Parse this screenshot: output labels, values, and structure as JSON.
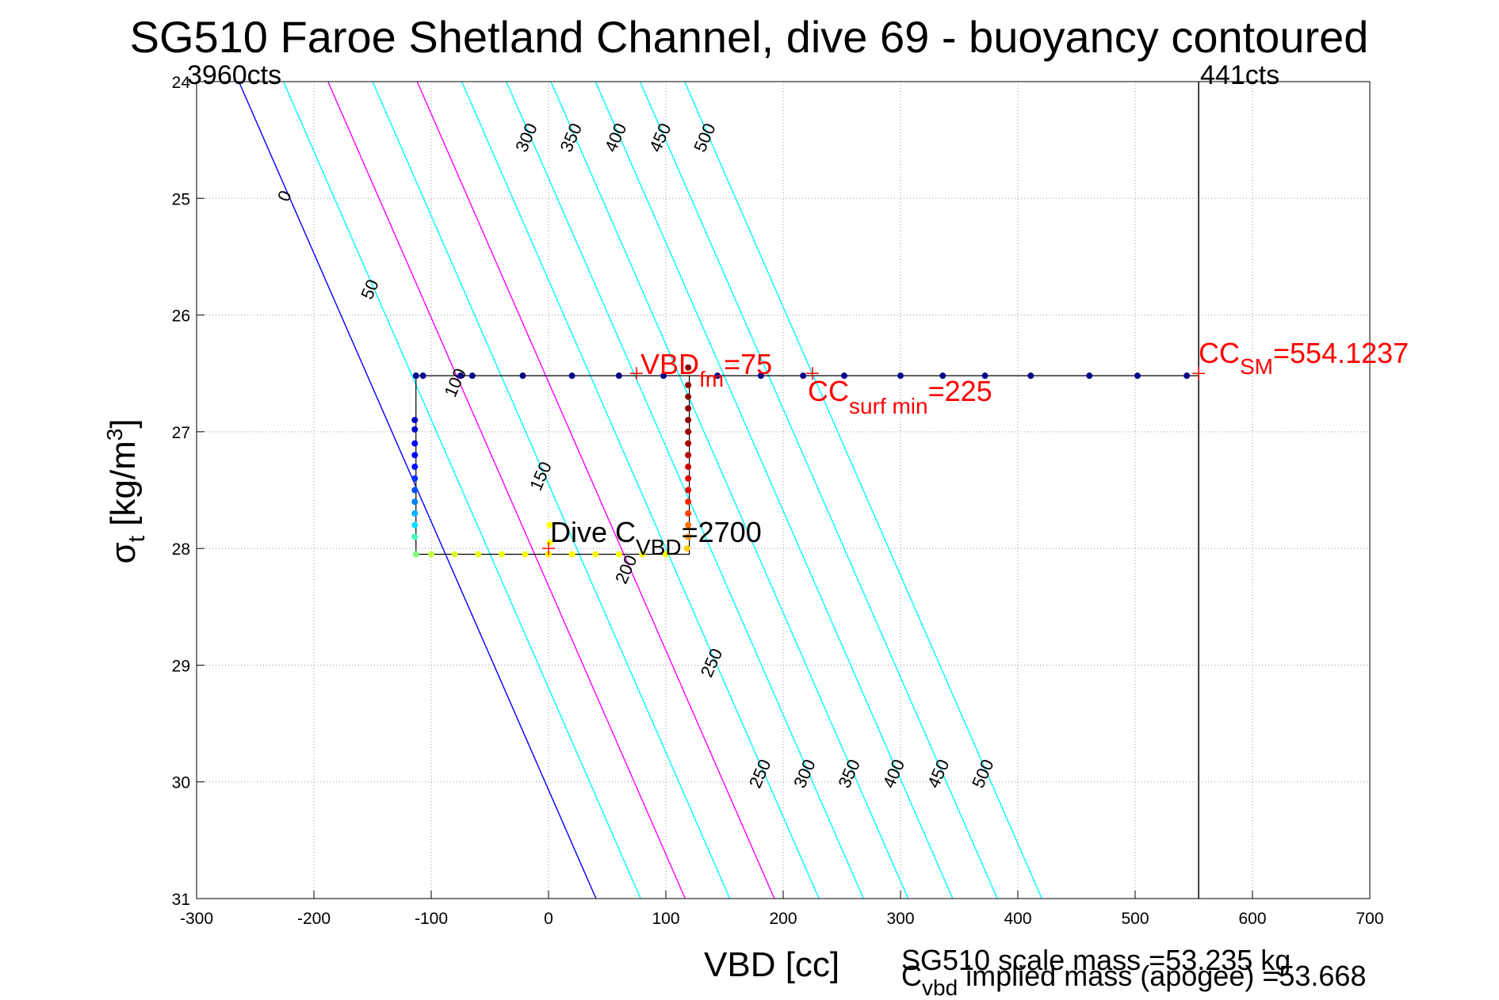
{
  "chart_data": {
    "type": "scatter",
    "title": "SG510 Faroe Shetland Channel, dive 69 - buoyancy contoured",
    "xlabel": "VBD [cc]",
    "ylabel_main": "σ",
    "ylabel_sub": "t",
    "ylabel_unit": " [kg/m",
    "ylabel_sup": "3",
    "ylabel_close": "]",
    "xlim": [
      -300,
      700
    ],
    "ylim": [
      24,
      31
    ],
    "y_reversed": true,
    "grid": true,
    "x_ticks": [
      -300,
      -200,
      -100,
      0,
      100,
      200,
      300,
      400,
      500,
      600,
      700
    ],
    "y_ticks": [
      24,
      25,
      26,
      27,
      28,
      29,
      30,
      31
    ],
    "top_left_label": "3960cts",
    "top_right_label": "441cts",
    "cc_sm": {
      "x": 554.1237,
      "sigma": 26.5,
      "label": "CC",
      "sub": "SM",
      "value": "=554.1237"
    },
    "vbd_fm": {
      "x": 75,
      "sigma": 26.5,
      "label": "VBD",
      "sub": "fm",
      "value": "=75"
    },
    "cc_surf_min": {
      "x": 225,
      "sigma": 26.5,
      "label": "CC",
      "sub": "surf min",
      "value": "=225"
    },
    "dive_cvbd": {
      "x": 0,
      "sigma": 28.0,
      "label": "Dive C",
      "sub": "VBD",
      "value": "=2700"
    },
    "bottom_note_1": "SG510 scale mass =53.235 kg",
    "bottom_note_2_main": "C",
    "bottom_note_2_sub": "vbd",
    "bottom_note_2_rest": " implied mass (apogee) =53.668",
    "contours": [
      {
        "label": "0",
        "color": "#0000ff",
        "offset": -264
      },
      {
        "label": "50",
        "color": "#00ffff",
        "offset": -226
      },
      {
        "label": "100",
        "color": "#ff00ff",
        "offset": -188
      },
      {
        "label": "150",
        "color": "#00ffff",
        "offset": -150
      },
      {
        "label": "200",
        "color": "#ff00ff",
        "offset": -112
      },
      {
        "label": "250",
        "color": "#00ffff",
        "offset": -74
      },
      {
        "label": "300",
        "color": "#00ffff",
        "offset": -36
      },
      {
        "label": "350",
        "color": "#00ffff",
        "offset": 2
      },
      {
        "label": "400",
        "color": "#00ffff",
        "offset": 40
      },
      {
        "label": "450",
        "color": "#00ffff",
        "offset": 78
      },
      {
        "label": "500",
        "color": "#00ffff",
        "offset": 116
      }
    ],
    "contour_slope_cc_per_sigma": 43.5,
    "line_path": [
      {
        "x": 554.1,
        "y": 26.52
      },
      {
        "x": -113,
        "y": 26.52
      },
      {
        "x": -113,
        "y": 28.05
      },
      {
        "x": 120,
        "y": 28.05
      },
      {
        "x": 120,
        "y": 26.52
      }
    ],
    "series": [
      {
        "name": "",
        "points": [
          {
            "x": 544,
            "y": 26.52,
            "c": "#00008b"
          },
          {
            "x": 502,
            "y": 26.52,
            "c": "#00008b"
          },
          {
            "x": 461,
            "y": 26.52,
            "c": "#00008b"
          },
          {
            "x": 411,
            "y": 26.52,
            "c": "#00008b"
          },
          {
            "x": 372,
            "y": 26.52,
            "c": "#00008b"
          },
          {
            "x": 336,
            "y": 26.52,
            "c": "#00008b"
          },
          {
            "x": 300,
            "y": 26.52,
            "c": "#00008b"
          },
          {
            "x": 252,
            "y": 26.52,
            "c": "#00008b"
          },
          {
            "x": 217,
            "y": 26.52,
            "c": "#00008b"
          },
          {
            "x": 181,
            "y": 26.52,
            "c": "#00008b"
          },
          {
            "x": 144,
            "y": 26.52,
            "c": "#00008b"
          },
          {
            "x": 98,
            "y": 26.52,
            "c": "#00008b"
          },
          {
            "x": 60,
            "y": 26.52,
            "c": "#00008b"
          },
          {
            "x": 20,
            "y": 26.52,
            "c": "#00008b"
          },
          {
            "x": -22,
            "y": 26.52,
            "c": "#00008b"
          },
          {
            "x": -65,
            "y": 26.52,
            "c": "#00008b"
          },
          {
            "x": -75,
            "y": 26.52,
            "c": "#00008b"
          },
          {
            "x": -107,
            "y": 26.52,
            "c": "#00008b"
          },
          {
            "x": -113,
            "y": 26.52,
            "c": "#00008b"
          },
          {
            "x": -114,
            "y": 26.9,
            "c": "#0000cd"
          },
          {
            "x": -114,
            "y": 26.98,
            "c": "#0000cd"
          },
          {
            "x": -114,
            "y": 27.1,
            "c": "#0000ff"
          },
          {
            "x": -114,
            "y": 27.2,
            "c": "#0000ff"
          },
          {
            "x": -114,
            "y": 27.3,
            "c": "#0010ff"
          },
          {
            "x": -114,
            "y": 27.4,
            "c": "#0030ff"
          },
          {
            "x": -114,
            "y": 27.5,
            "c": "#0050ff"
          },
          {
            "x": -114,
            "y": 27.6,
            "c": "#0080ff"
          },
          {
            "x": -114,
            "y": 27.7,
            "c": "#00b0ff"
          },
          {
            "x": -114,
            "y": 27.8,
            "c": "#00e0ff"
          },
          {
            "x": -114,
            "y": 27.9,
            "c": "#40ffc0"
          },
          {
            "x": -113,
            "y": 28.05,
            "c": "#80ff80"
          },
          {
            "x": -100,
            "y": 28.05,
            "c": "#c0ff40"
          },
          {
            "x": -80,
            "y": 28.05,
            "c": "#d8ff28"
          },
          {
            "x": -60,
            "y": 28.05,
            "c": "#e8ff18"
          },
          {
            "x": -40,
            "y": 28.05,
            "c": "#f0ff10"
          },
          {
            "x": -20,
            "y": 28.05,
            "c": "#f8ff08"
          },
          {
            "x": 0,
            "y": 28.05,
            "c": "#ffff00"
          },
          {
            "x": 20,
            "y": 28.05,
            "c": "#ffff00"
          },
          {
            "x": 40,
            "y": 28.05,
            "c": "#ffff00"
          },
          {
            "x": 60,
            "y": 28.05,
            "c": "#ffff00"
          },
          {
            "x": 80,
            "y": 28.05,
            "c": "#ffff00"
          },
          {
            "x": 100,
            "y": 28.05,
            "c": "#ffff00"
          },
          {
            "x": 118,
            "y": 28.0,
            "c": "#ffd000"
          },
          {
            "x": 119,
            "y": 27.9,
            "c": "#ffa000"
          },
          {
            "x": 119,
            "y": 27.8,
            "c": "#ff7000"
          },
          {
            "x": 119,
            "y": 27.7,
            "c": "#ff4000"
          },
          {
            "x": 119,
            "y": 27.6,
            "c": "#ff2000"
          },
          {
            "x": 119,
            "y": 27.5,
            "c": "#ee0000"
          },
          {
            "x": 119,
            "y": 27.4,
            "c": "#dd0000"
          },
          {
            "x": 119,
            "y": 27.3,
            "c": "#cc0000"
          },
          {
            "x": 119,
            "y": 27.2,
            "c": "#bb0000"
          },
          {
            "x": 119,
            "y": 27.1,
            "c": "#aa0000"
          },
          {
            "x": 119,
            "y": 27.0,
            "c": "#990000"
          },
          {
            "x": 119,
            "y": 26.9,
            "c": "#8b0000"
          },
          {
            "x": 119,
            "y": 26.8,
            "c": "#8b0000"
          },
          {
            "x": 119,
            "y": 26.7,
            "c": "#8b0000"
          },
          {
            "x": 119,
            "y": 26.6,
            "c": "#8b0000"
          },
          {
            "x": 119,
            "y": 26.45,
            "c": "#8b0000"
          },
          {
            "x": 1,
            "y": 27.8,
            "c": "#ffff00"
          },
          {
            "x": 1,
            "y": 27.95,
            "c": "#ffff00"
          }
        ]
      }
    ]
  }
}
